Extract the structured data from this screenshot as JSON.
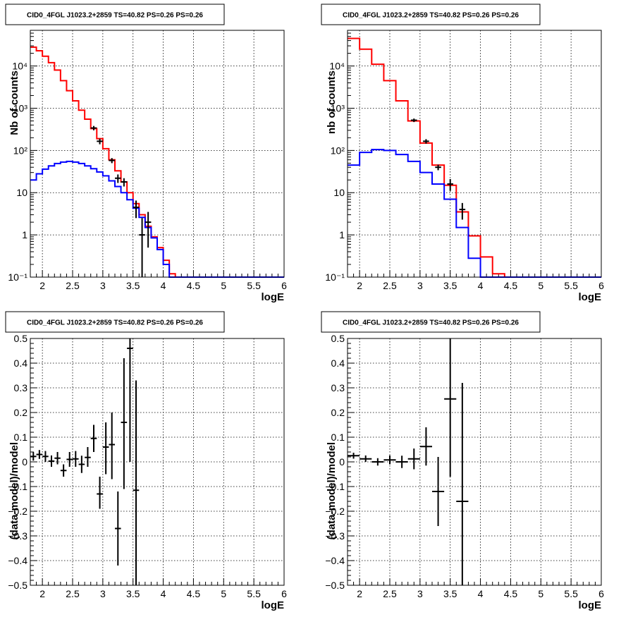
{
  "colors": {
    "model_total": "#ff0000",
    "model_source": "#0000ff",
    "data": "#000000"
  },
  "chart_data": [
    {
      "id": "tl",
      "type": "line",
      "title": "CID0_4FGL J1023.2+2859 TS=40.82 PS=0.26 PS=0.26",
      "xlabel": "logE",
      "ylabel": "Nb of counts",
      "xlim": [
        1.8,
        6.0
      ],
      "ylim": [
        0.1,
        70000
      ],
      "yscale": "log",
      "grid": true,
      "xticks": [
        2,
        2.5,
        3,
        3.5,
        4,
        4.5,
        5,
        5.5,
        6
      ],
      "xticklabels": [
        "2",
        "2.5",
        "3",
        "3.5",
        "4",
        "4.5",
        "5",
        "5.5",
        "6"
      ],
      "yticks": [
        0.1,
        1,
        10,
        100,
        1000,
        10000
      ],
      "yticklabels": [
        "10⁻¹",
        "1",
        "10",
        "10²",
        "10³",
        "10⁴"
      ],
      "bin_edges": [
        1.8,
        1.9,
        2.0,
        2.1,
        2.2,
        2.3,
        2.4,
        2.5,
        2.6,
        2.7,
        2.8,
        2.9,
        3.0,
        3.1,
        3.2,
        3.3,
        3.4,
        3.5,
        3.6,
        3.7,
        3.8,
        3.9,
        4.0,
        4.1,
        4.2,
        4.3,
        4.4,
        4.5,
        4.6,
        4.7,
        4.8,
        4.9,
        5.0,
        5.1,
        5.2,
        5.3,
        5.4,
        5.5,
        5.6,
        5.7,
        5.8,
        5.9,
        6.0
      ],
      "series": [
        {
          "role": "model_total",
          "values": [
            28000,
            23000,
            17000,
            12000,
            8000,
            4500,
            2600,
            1500,
            900,
            550,
            330,
            190,
            110,
            60,
            33,
            18,
            10,
            5.5,
            3,
            1.6,
            0.9,
            0.5,
            0.25,
            0.12,
            0.09,
            0.09,
            0.09,
            0.09,
            0.09,
            0.09,
            0.09,
            0.09,
            0.09,
            0.09,
            0.09,
            0.09,
            0.09,
            0.09,
            0.09,
            0.09,
            0.09,
            0.09
          ]
        },
        {
          "role": "model_source",
          "values": [
            20,
            28,
            36,
            43,
            49,
            53,
            55,
            53,
            49,
            43,
            37,
            31,
            25,
            19,
            14,
            10,
            6.8,
            4.3,
            2.6,
            1.5,
            0.85,
            0.45,
            0.2,
            0.1,
            0.09,
            0.09,
            0.09,
            0.09,
            0.09,
            0.09,
            0.09,
            0.09,
            0.09,
            0.09,
            0.09,
            0.09,
            0.09,
            0.09,
            0.09,
            0.09,
            0.09,
            0.09
          ]
        }
      ],
      "points": [
        {
          "x": 2.85,
          "y": 340,
          "ylo": 300,
          "yhi": 380
        },
        {
          "x": 2.95,
          "y": 165,
          "ylo": 140,
          "yhi": 190
        },
        {
          "x": 3.15,
          "y": 58,
          "ylo": 50,
          "yhi": 66
        },
        {
          "x": 3.25,
          "y": 22,
          "ylo": 17,
          "yhi": 27
        },
        {
          "x": 3.35,
          "y": 18,
          "ylo": 14,
          "yhi": 22
        },
        {
          "x": 3.55,
          "y": 4.5,
          "ylo": 2.5,
          "yhi": 6.5
        },
        {
          "x": 3.65,
          "y": 1,
          "ylo": 0.1,
          "yhi": 2.5
        },
        {
          "x": 3.75,
          "y": 2,
          "ylo": 0.5,
          "yhi": 3.5
        }
      ]
    },
    {
      "id": "tr",
      "type": "line",
      "title": "CID0_4FGL J1023.2+2859 TS=40.82 PS=0.26 PS=0.26",
      "xlabel": "logE",
      "ylabel": "nb of counts",
      "xlim": [
        1.8,
        6.0
      ],
      "ylim": [
        0.1,
        70000
      ],
      "yscale": "log",
      "grid": true,
      "xticks": [
        2,
        2.5,
        3,
        3.5,
        4,
        4.5,
        5,
        5.5,
        6
      ],
      "xticklabels": [
        "2",
        "2.5",
        "3",
        "3.5",
        "4",
        "4.5",
        "5",
        "5.5",
        "6"
      ],
      "yticks": [
        0.1,
        1,
        10,
        100,
        1000,
        10000
      ],
      "yticklabels": [
        "10⁻¹",
        "1",
        "10",
        "10²",
        "10³",
        "10⁴"
      ],
      "bin_edges": [
        1.8,
        2.0,
        2.2,
        2.4,
        2.6,
        2.8,
        3.0,
        3.2,
        3.4,
        3.6,
        3.8,
        4.0,
        4.2,
        4.4,
        4.6,
        4.8,
        5.0,
        5.2,
        5.4,
        5.6,
        5.8,
        6.0
      ],
      "series": [
        {
          "role": "model_total",
          "values": [
            45000,
            25000,
            11000,
            4500,
            1500,
            500,
            150,
            45,
            15,
            3.5,
            0.95,
            0.3,
            0.12,
            0.09,
            0.09,
            0.09,
            0.09,
            0.09,
            0.09,
            0.09,
            0.09
          ]
        },
        {
          "role": "model_source",
          "values": [
            45,
            90,
            105,
            100,
            80,
            55,
            30,
            16,
            7,
            1.5,
            0.28,
            0.09,
            0.09,
            0.09,
            0.09,
            0.09,
            0.09,
            0.09,
            0.09,
            0.09,
            0.09
          ]
        }
      ],
      "points": [
        {
          "x": 2.9,
          "y": 520,
          "ylo": 470,
          "yhi": 570
        },
        {
          "x": 3.1,
          "y": 165,
          "ylo": 145,
          "yhi": 185
        },
        {
          "x": 3.3,
          "y": 40,
          "ylo": 34,
          "yhi": 46
        },
        {
          "x": 3.5,
          "y": 16,
          "ylo": 11,
          "yhi": 21
        },
        {
          "x": 3.7,
          "y": 4,
          "ylo": 2.3,
          "yhi": 5.7
        }
      ]
    },
    {
      "id": "bl",
      "type": "scatter",
      "title": "CID0_4FGL J1023.2+2859 TS=40.82 PS=0.26 PS=0.26",
      "xlabel": "logE",
      "ylabel": "(data-model)/model",
      "xlim": [
        1.8,
        6.0
      ],
      "ylim": [
        -0.5,
        0.5
      ],
      "yscale": "linear",
      "grid": true,
      "xticks": [
        2,
        2.5,
        3,
        3.5,
        4,
        4.5,
        5,
        5.5,
        6
      ],
      "xticklabels": [
        "2",
        "2.5",
        "3",
        "3.5",
        "4",
        "4.5",
        "5",
        "5.5",
        "6"
      ],
      "yticks": [
        -0.5,
        -0.4,
        -0.3,
        -0.2,
        -0.1,
        0,
        0.1,
        0.2,
        0.3,
        0.4,
        0.5
      ],
      "yticklabels": [
        "−0.5",
        "−0.4",
        "−0.3",
        "−0.2",
        "−0.1",
        "0",
        "0.1",
        "0.2",
        "0.3",
        "0.4",
        "0.5"
      ],
      "xerr": 0.05,
      "points": [
        {
          "x": 1.85,
          "y": 0.022,
          "ylo": 0.005,
          "yhi": 0.039
        },
        {
          "x": 1.95,
          "y": 0.03,
          "ylo": 0.012,
          "yhi": 0.048
        },
        {
          "x": 2.05,
          "y": 0.022,
          "ylo": 0.0,
          "yhi": 0.044
        },
        {
          "x": 2.15,
          "y": 0.003,
          "ylo": -0.02,
          "yhi": 0.026
        },
        {
          "x": 2.25,
          "y": 0.015,
          "ylo": -0.01,
          "yhi": 0.04
        },
        {
          "x": 2.35,
          "y": -0.035,
          "ylo": -0.06,
          "yhi": -0.01
        },
        {
          "x": 2.45,
          "y": 0.01,
          "ylo": -0.02,
          "yhi": 0.04
        },
        {
          "x": 2.55,
          "y": 0.012,
          "ylo": -0.02,
          "yhi": 0.044
        },
        {
          "x": 2.65,
          "y": -0.01,
          "ylo": -0.045,
          "yhi": 0.025
        },
        {
          "x": 2.75,
          "y": 0.018,
          "ylo": -0.02,
          "yhi": 0.06
        },
        {
          "x": 2.85,
          "y": 0.095,
          "ylo": 0.04,
          "yhi": 0.15
        },
        {
          "x": 2.95,
          "y": -0.13,
          "ylo": -0.19,
          "yhi": -0.06
        },
        {
          "x": 3.05,
          "y": 0.06,
          "ylo": -0.05,
          "yhi": 0.16
        },
        {
          "x": 3.15,
          "y": 0.07,
          "ylo": -0.07,
          "yhi": 0.2
        },
        {
          "x": 3.25,
          "y": -0.27,
          "ylo": -0.42,
          "yhi": -0.12
        },
        {
          "x": 3.35,
          "y": 0.16,
          "ylo": -0.11,
          "yhi": 0.42
        },
        {
          "x": 3.45,
          "y": 0.46,
          "ylo": 0.0,
          "yhi": 0.5
        },
        {
          "x": 3.55,
          "y": -0.115,
          "ylo": -0.5,
          "yhi": 0.33
        }
      ]
    },
    {
      "id": "br",
      "type": "scatter",
      "title": "CID0_4FGL J1023.2+2859 TS=40.82 PS=0.26 PS=0.26",
      "xlabel": "logE",
      "ylabel": "(data-model)/model",
      "xlim": [
        1.8,
        6.0
      ],
      "ylim": [
        -0.5,
        0.5
      ],
      "yscale": "linear",
      "grid": true,
      "xticks": [
        2,
        2.5,
        3,
        3.5,
        4,
        4.5,
        5,
        5.5,
        6
      ],
      "xticklabels": [
        "2",
        "2.5",
        "3",
        "3.5",
        "4",
        "4.5",
        "5",
        "5.5",
        "6"
      ],
      "yticks": [
        -0.5,
        -0.4,
        -0.3,
        -0.2,
        -0.1,
        0,
        0.1,
        0.2,
        0.3,
        0.4,
        0.5
      ],
      "yticklabels": [
        "−0.5",
        "−0.4",
        "−0.3",
        "−0.2",
        "−0.1",
        "0",
        "0.1",
        "0.2",
        "0.3",
        "0.4",
        "0.5"
      ],
      "xerr": 0.1,
      "points": [
        {
          "x": 1.9,
          "y": 0.025,
          "ylo": 0.013,
          "yhi": 0.037
        },
        {
          "x": 2.1,
          "y": 0.012,
          "ylo": 0.0,
          "yhi": 0.026
        },
        {
          "x": 2.3,
          "y": 0.0,
          "ylo": -0.015,
          "yhi": 0.015
        },
        {
          "x": 2.5,
          "y": 0.008,
          "ylo": -0.01,
          "yhi": 0.026
        },
        {
          "x": 2.7,
          "y": 0.0,
          "ylo": -0.025,
          "yhi": 0.025
        },
        {
          "x": 2.9,
          "y": 0.012,
          "ylo": -0.03,
          "yhi": 0.054
        },
        {
          "x": 3.1,
          "y": 0.062,
          "ylo": -0.015,
          "yhi": 0.14
        },
        {
          "x": 3.3,
          "y": -0.12,
          "ylo": -0.26,
          "yhi": 0.02
        },
        {
          "x": 3.5,
          "y": 0.255,
          "ylo": -0.06,
          "yhi": 0.5
        },
        {
          "x": 3.7,
          "y": -0.16,
          "ylo": -0.5,
          "yhi": 0.32
        }
      ]
    }
  ]
}
